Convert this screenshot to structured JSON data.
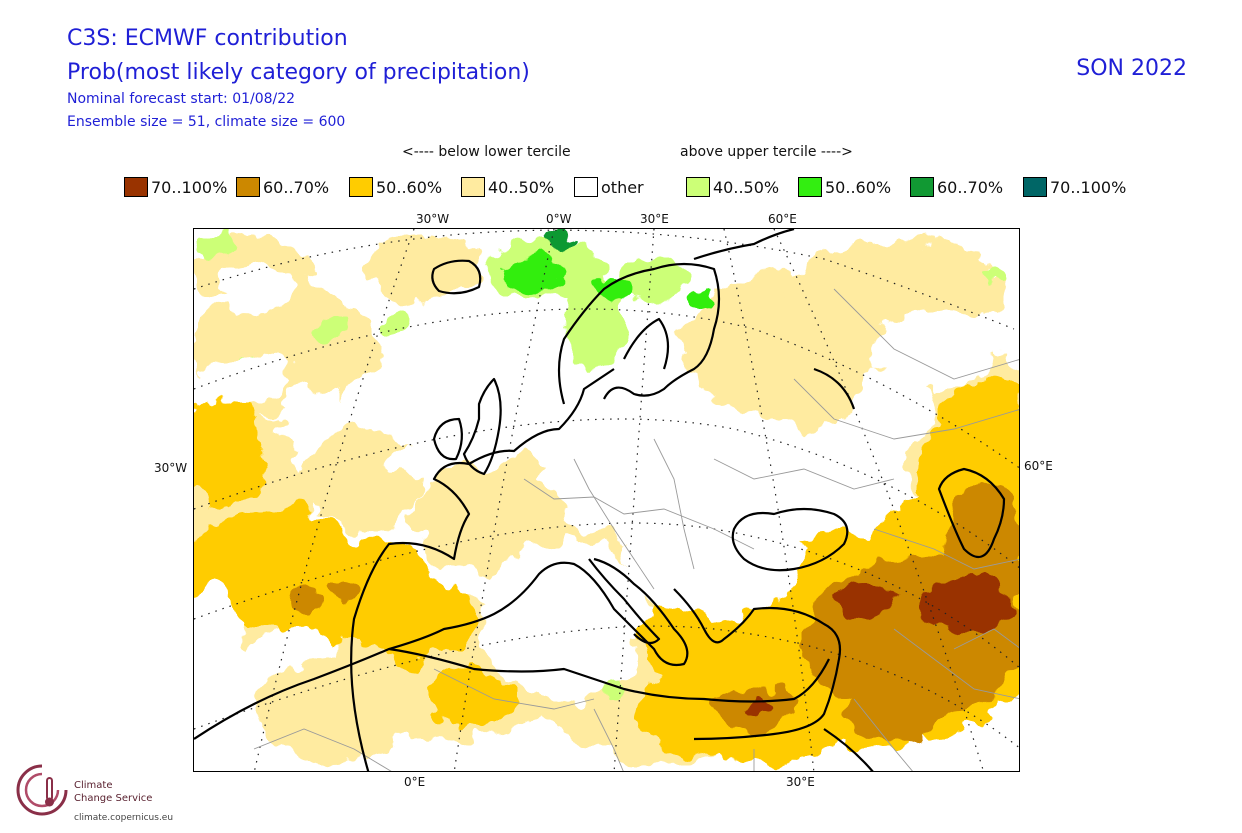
{
  "title": {
    "line1": "C3S: ECMWF contribution",
    "line2": "Prob(most likely category of precipitation)",
    "line3": "Nominal forecast start: 01/08/22",
    "line4": "Ensemble size = 51, climate size = 600",
    "season": "SON 2022"
  },
  "legend": {
    "below_header": "<---- below lower tercile",
    "above_header": "above upper tercile ---->",
    "items": [
      {
        "label": "70..100%",
        "color": "#993300"
      },
      {
        "label": "60..70%",
        "color": "#cc8800"
      },
      {
        "label": "50..60%",
        "color": "#ffcc00"
      },
      {
        "label": "40..50%",
        "color": "#ffeba0"
      },
      {
        "label": "other",
        "color": "#ffffff"
      },
      {
        "label": "40..50%",
        "color": "#ccff77"
      },
      {
        "label": "50..60%",
        "color": "#33ee11"
      },
      {
        "label": "60..70%",
        "color": "#119933"
      },
      {
        "label": "70..100%",
        "color": "#006666"
      }
    ]
  },
  "axes": {
    "top": [
      "30°W",
      "0°W",
      "30°E",
      "60°E"
    ],
    "left": "30°W",
    "right": "60°E",
    "bottom": [
      "0°E",
      "30°E"
    ]
  },
  "logo": {
    "line1": "Climate",
    "line2": "Change Service",
    "url": "climate.copernicus.eu"
  }
}
